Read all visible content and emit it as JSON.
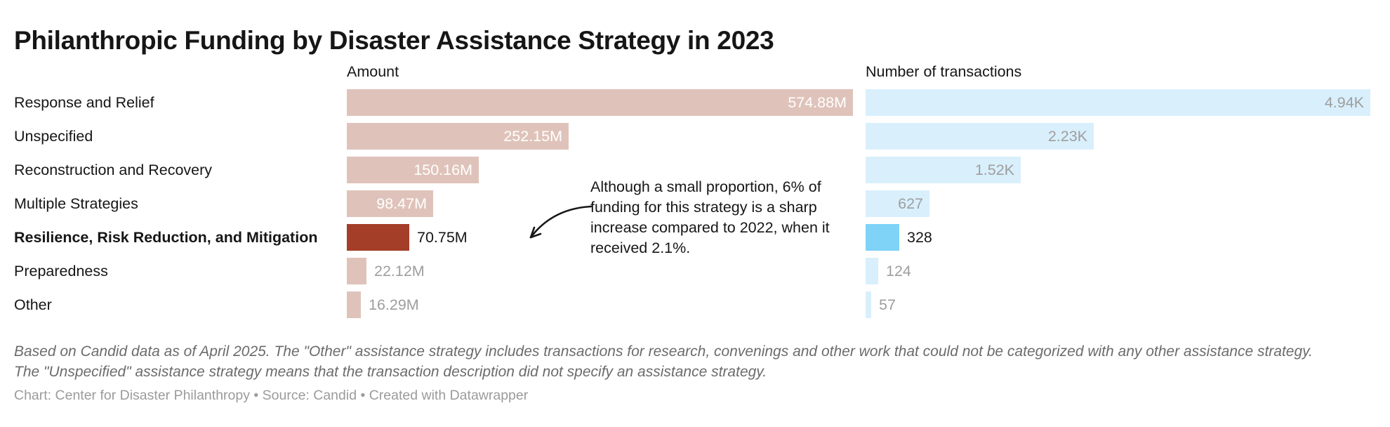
{
  "title": "Philanthropic Funding by Disaster Assistance Strategy in 2023",
  "columns": {
    "amount_header": "Amount",
    "transactions_header": "Number of transactions"
  },
  "chart_data": {
    "type": "bar",
    "layout_hint": "two horizontal bar columns sharing one category axis, value labels on bars, no gridlines",
    "categories": [
      "Response and Relief",
      "Unspecified",
      "Reconstruction and Recovery",
      "Multiple Strategies",
      "Resilience, Risk Reduction, and Mitigation",
      "Preparedness",
      "Other"
    ],
    "highlight_index": 4,
    "label_placement": [
      "inside",
      "inside",
      "inside",
      "inside",
      "outside",
      "outside",
      "outside"
    ],
    "series": [
      {
        "name": "Amount",
        "values": [
          574.88,
          252.15,
          150.16,
          98.47,
          70.75,
          22.12,
          16.29
        ],
        "labels": [
          "574.88M",
          "252.15M",
          "150.16M",
          "98.47M",
          "70.75M",
          "22.12M",
          "16.29M"
        ],
        "unit": "M USD",
        "bar_color": "#dfc3ba",
        "highlight_color": "#a43e28",
        "inside_label_color": "#ffffff"
      },
      {
        "name": "Number of transactions",
        "values": [
          4940,
          2230,
          1520,
          627,
          328,
          124,
          57
        ],
        "labels": [
          "4.94K",
          "2.23K",
          "1.52K",
          "627",
          "328",
          "124",
          "57"
        ],
        "unit": "transactions",
        "bar_color": "#d9effc",
        "highlight_color": "#7ed3f7",
        "inside_label_color": "#9e9e9e"
      }
    ]
  },
  "annotation": {
    "text": "Although a small proportion, 6% of funding for this strategy is a sharp increase compared to 2022, when it received 2.1%."
  },
  "colors": {
    "text_dark": "#161616",
    "label_muted": "#9e9e9e",
    "notes_gray": "#6b6b6b",
    "byline_gray": "#9b9b9b"
  },
  "notes": "Based on Candid data as of April 2025. The \"Other\" assistance strategy includes transactions for research, convenings and other work that could not be categorized with any other assistance strategy. The \"Unspecified\" assistance strategy means that the transaction description did not specify an assistance strategy.",
  "byline": "Chart: Center for Disaster Philanthropy • Source: Candid • Created with Datawrapper"
}
